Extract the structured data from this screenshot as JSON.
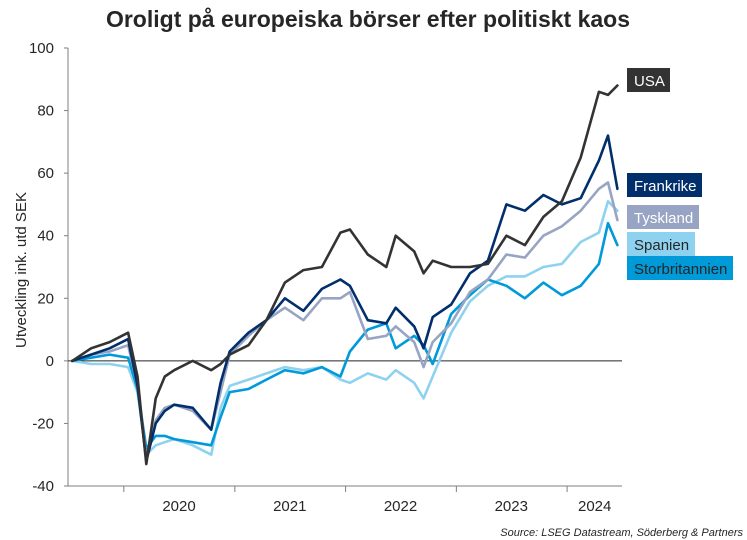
{
  "chart_data": {
    "type": "line",
    "title": "Oroligt på europeiska börser efter politiskt kaos",
    "ylabel": "Utveckling ink. utd SEK",
    "xlabel": "",
    "source": "Source: LSEG Datastream, Söderberg & Partners",
    "ylim": [
      -40,
      100
    ],
    "xlim": [
      "2019-07-01",
      "2024-06-30"
    ],
    "y_ticks": [
      -40,
      -20,
      0,
      20,
      40,
      60,
      80,
      100
    ],
    "x_tick_labels": [
      {
        "label": "2020",
        "at": "2020-07-01"
      },
      {
        "label": "2021",
        "at": "2021-07-01"
      },
      {
        "label": "2022",
        "at": "2022-07-01"
      },
      {
        "label": "2023",
        "at": "2023-07-01"
      },
      {
        "label": "2024",
        "at": "2024-04-01"
      }
    ],
    "x_boundaries": [
      "2020-01-01",
      "2021-01-01",
      "2022-01-01",
      "2023-01-01",
      "2024-01-01"
    ],
    "grid": false,
    "legend": "end labels at right",
    "x": [
      "2019-07",
      "2019-09",
      "2019-11",
      "2020-01",
      "2020-02",
      "2020-03",
      "2020-04",
      "2020-05",
      "2020-06",
      "2020-08",
      "2020-10",
      "2020-11",
      "2020-12",
      "2021-02",
      "2021-04",
      "2021-06",
      "2021-08",
      "2021-10",
      "2021-12",
      "2022-01",
      "2022-03",
      "2022-05",
      "2022-06",
      "2022-08",
      "2022-09",
      "2022-10",
      "2022-12",
      "2023-02",
      "2023-04",
      "2023-06",
      "2023-08",
      "2023-10",
      "2023-12",
      "2024-02",
      "2024-04",
      "2024-05",
      "2024-06"
    ],
    "series": [
      {
        "name": "USA",
        "color": "#333333",
        "values": [
          0,
          4,
          6,
          9,
          -5,
          -33,
          -12,
          -5,
          -3,
          0,
          -3,
          -1,
          2,
          5,
          13,
          25,
          29,
          30,
          41,
          42,
          34,
          30,
          40,
          35,
          28,
          32,
          30,
          30,
          31,
          40,
          37,
          46,
          51,
          65,
          86,
          85,
          88
        ]
      },
      {
        "name": "Frankrike",
        "color": "#002f6c",
        "values": [
          0,
          2,
          4,
          7,
          -8,
          -32,
          -20,
          -16,
          -14,
          -15,
          -22,
          -7,
          3,
          9,
          13,
          20,
          16,
          23,
          26,
          24,
          13,
          12,
          17,
          11,
          4,
          14,
          18,
          28,
          32,
          50,
          48,
          53,
          50,
          52,
          64,
          72,
          55
        ]
      },
      {
        "name": "Tyskland",
        "color": "#98a4c3",
        "values": [
          0,
          2,
          3,
          5,
          -8,
          -31,
          -19,
          -15,
          -14,
          -16,
          -22,
          -10,
          2,
          8,
          13,
          17,
          13,
          20,
          20,
          22,
          7,
          8,
          11,
          6,
          -2,
          6,
          12,
          22,
          26,
          34,
          33,
          40,
          43,
          48,
          55,
          57,
          45
        ]
      },
      {
        "name": "Spanien",
        "color": "#8fd2ef",
        "values": [
          0,
          -1,
          -1,
          -2,
          -10,
          -30,
          -27,
          -26,
          -25,
          -27,
          -30,
          -15,
          -8,
          -6,
          -4,
          -2,
          -3,
          -2,
          -6,
          -7,
          -4,
          -6,
          -3,
          -7,
          -12,
          -5,
          9,
          19,
          24,
          27,
          27,
          30,
          31,
          38,
          41,
          51,
          48
        ]
      },
      {
        "name": "Storbritannien",
        "color": "#009ad9",
        "values": [
          0,
          1,
          2,
          1,
          -9,
          -28,
          -24,
          -24,
          -25,
          -26,
          -27,
          -18,
          -10,
          -9,
          -6,
          -3,
          -4,
          -2,
          -5,
          3,
          10,
          12,
          4,
          8,
          5,
          -1,
          15,
          21,
          26,
          24,
          20,
          25,
          21,
          24,
          31,
          44,
          37
        ]
      }
    ]
  }
}
